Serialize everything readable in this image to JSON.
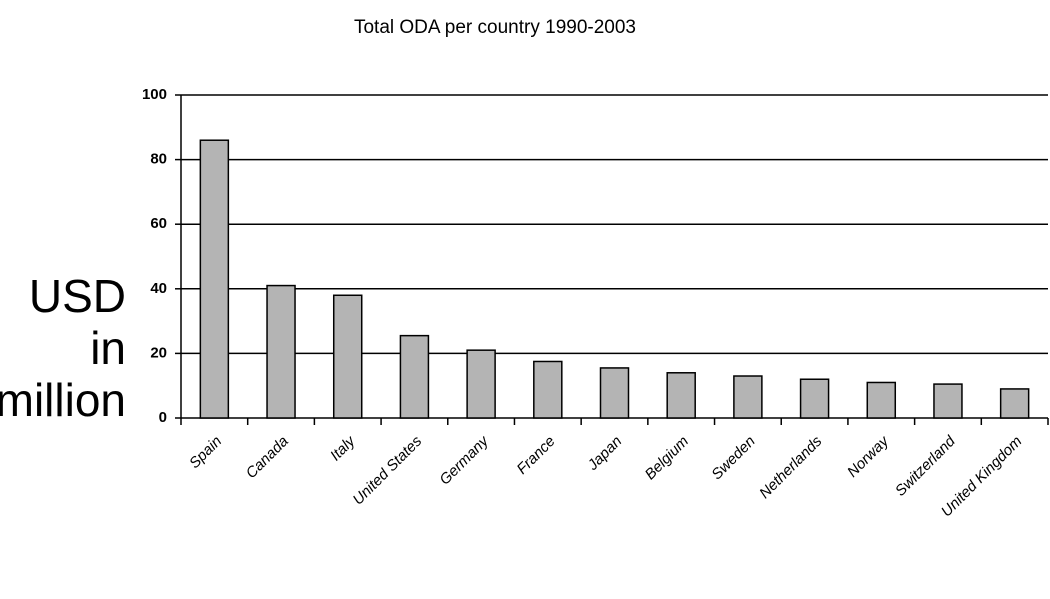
{
  "chart_data": {
    "type": "bar",
    "title": "Total ODA per country 1990-2003",
    "ylabel": [
      "USD",
      "in",
      "million"
    ],
    "categories": [
      "Spain",
      "Canada",
      "Italy",
      "United States",
      "Germany",
      "France",
      "Japan",
      "Belgium",
      "Sweden",
      "Netherlands",
      "Norway",
      "Switzerland",
      "United Kingdom"
    ],
    "values": [
      86,
      41,
      38,
      25.5,
      21,
      17.5,
      15.5,
      14,
      13,
      12,
      11,
      10.5,
      9
    ],
    "color": "#b4b4b4",
    "ylim": [
      0,
      100
    ],
    "yticks": [
      0,
      20,
      40,
      60,
      80,
      100
    ],
    "grid": true
  }
}
